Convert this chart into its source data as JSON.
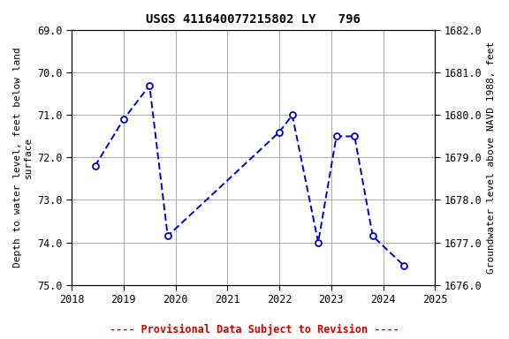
{
  "title": "USGS 411640077215802 LY   796",
  "ylabel_left": "Depth to water level, feet below land\nsurface",
  "ylabel_right": "Groundwater level above NAVD 1988, feet",
  "xlim": [
    2018,
    2025
  ],
  "ylim_left": [
    75.0,
    69.0
  ],
  "ylim_right": [
    1676.0,
    1682.0
  ],
  "xticks": [
    2018,
    2019,
    2020,
    2021,
    2022,
    2023,
    2024,
    2025
  ],
  "yticks_left": [
    69.0,
    70.0,
    71.0,
    72.0,
    73.0,
    74.0,
    75.0
  ],
  "yticks_right": [
    1676.0,
    1677.0,
    1678.0,
    1679.0,
    1680.0,
    1681.0,
    1682.0
  ],
  "x_data": [
    2018.45,
    2019.0,
    2019.5,
    2019.85,
    2022.0,
    2022.25,
    2022.75,
    2023.1,
    2023.45,
    2023.8,
    2024.4
  ],
  "y_data": [
    72.2,
    71.1,
    70.3,
    73.85,
    71.4,
    71.0,
    74.0,
    71.5,
    71.5,
    73.85,
    74.55
  ],
  "line_color": "#0000cc",
  "marker_color": "#0000cc",
  "marker_face": "#ffffff",
  "line_width": 1.4,
  "marker_size": 5,
  "grid_color": "#aaaaaa",
  "background_color": "#ffffff",
  "footnote": "---- Provisional Data Subject to Revision ----",
  "footnote_color": "#cc0000",
  "title_fontsize": 10,
  "label_fontsize": 8,
  "tick_fontsize": 8.5,
  "footnote_fontsize": 8.5
}
